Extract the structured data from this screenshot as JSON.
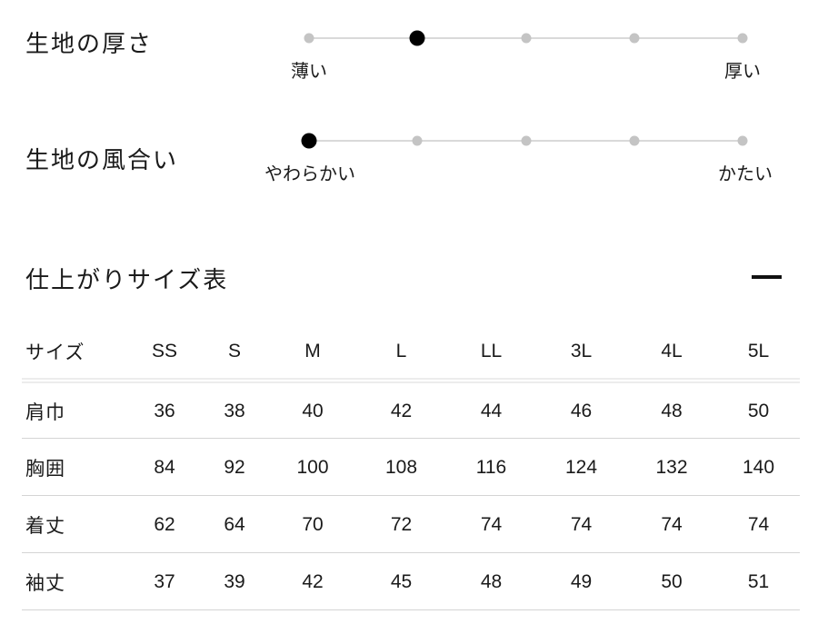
{
  "scales": [
    {
      "name": "生地の厚さ",
      "left_label": "薄い",
      "right_label": "厚い",
      "levels": 5,
      "active_index": 1
    },
    {
      "name": "生地の風合い",
      "left_label": "やわらかい",
      "right_label": "かたい",
      "levels": 5,
      "active_index": 0
    }
  ],
  "size_section": {
    "title": "仕上がりサイズ表",
    "toggle_icon": "minus",
    "table": {
      "header": [
        "サイズ",
        "SS",
        "S",
        "M",
        "L",
        "LL",
        "3L",
        "4L",
        "5L"
      ],
      "rows": [
        {
          "label": "肩巾",
          "values": [
            "36",
            "38",
            "40",
            "42",
            "44",
            "46",
            "48",
            "50"
          ]
        },
        {
          "label": "胸囲",
          "values": [
            "84",
            "92",
            "100",
            "108",
            "116",
            "124",
            "132",
            "140"
          ]
        },
        {
          "label": "着丈",
          "values": [
            "62",
            "64",
            "70",
            "72",
            "74",
            "74",
            "74",
            "74"
          ]
        },
        {
          "label": "袖丈",
          "values": [
            "37",
            "39",
            "42",
            "45",
            "48",
            "49",
            "50",
            "51"
          ]
        }
      ]
    }
  },
  "colors": {
    "background": "#ffffff",
    "text": "#1a1a1a",
    "active_dot": "#000000",
    "inactive_dot": "#c4c4c4",
    "track": "#d9d9d9",
    "row_border": "#d4d4d4",
    "header_border": "#ececec"
  }
}
